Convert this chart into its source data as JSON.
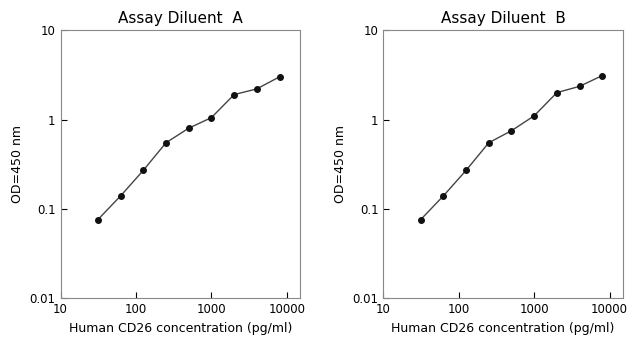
{
  "panel_A": {
    "title": "Assay Diluent  A",
    "x": [
      31.25,
      62.5,
      125,
      250,
      500,
      1000,
      2000,
      4000,
      8000
    ],
    "y": [
      0.076,
      0.14,
      0.27,
      0.55,
      0.8,
      1.05,
      1.9,
      2.2,
      3.0
    ],
    "xlabel": "Human CD26 concentration (pg/ml)",
    "ylabel": "OD=450 nm",
    "xlim": [
      10,
      15000
    ],
    "ylim": [
      0.01,
      10
    ]
  },
  "panel_B": {
    "title": "Assay Diluent  B",
    "x": [
      31.25,
      62.5,
      125,
      250,
      500,
      1000,
      2000,
      4000,
      8000
    ],
    "y": [
      0.076,
      0.14,
      0.27,
      0.55,
      0.75,
      1.1,
      2.0,
      2.35,
      3.1
    ],
    "xlabel": "Human CD26 concentration (pg/ml)",
    "ylabel": "OD=450 nm",
    "xlim": [
      10,
      15000
    ],
    "ylim": [
      0.01,
      10
    ]
  },
  "line_color": "#444444",
  "marker_color": "#111111",
  "bg_color": "#ffffff",
  "marker": "o",
  "markersize": 4,
  "linewidth": 1.0,
  "title_fontsize": 11,
  "label_fontsize": 9,
  "tick_fontsize": 8.5
}
